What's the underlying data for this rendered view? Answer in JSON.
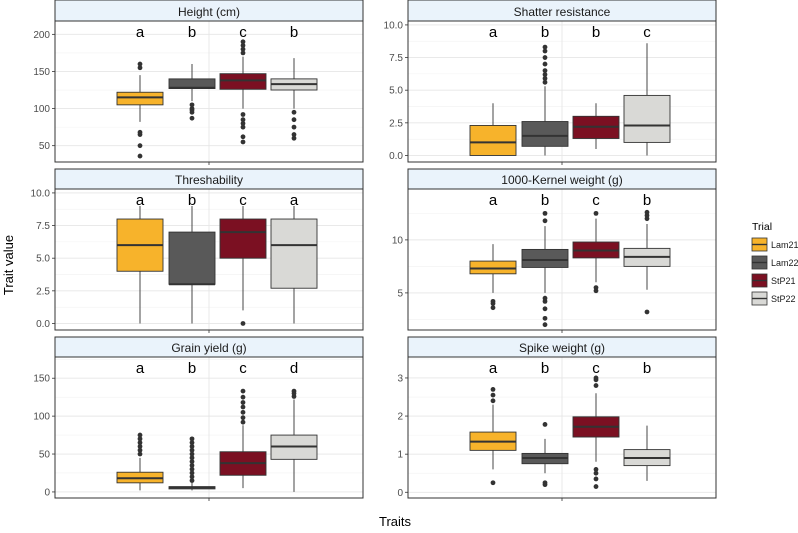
{
  "figure": {
    "ylabel": "Trait value",
    "xlabel": "Traits",
    "legend_title": "Trial",
    "legend": [
      {
        "name": "Lam21",
        "color": "#F7B32B"
      },
      {
        "name": "Lam22",
        "color": "#595959"
      },
      {
        "name": "StP21",
        "color": "#7B1022"
      },
      {
        "name": "StP22",
        "color": "#D9D9D6"
      }
    ]
  },
  "chart_data": [
    {
      "type": "boxplot",
      "title": "Height (cm)",
      "ylim": [
        28,
        218
      ],
      "yticks": [
        50,
        100,
        150,
        200
      ],
      "series": [
        {
          "name": "Lam21",
          "letter": "a",
          "min": 82,
          "q1": 105,
          "median": 115,
          "q3": 122,
          "max": 145,
          "outliers": [
            36,
            50,
            65,
            68,
            155,
            160
          ]
        },
        {
          "name": "Lam22",
          "letter": "b",
          "min": 110,
          "q1": 127,
          "median": 128,
          "q3": 140,
          "max": 160,
          "outliers": [
            87,
            95,
            98,
            100,
            105
          ]
        },
        {
          "name": "StP21",
          "letter": "c",
          "min": 100,
          "q1": 126,
          "median": 138,
          "q3": 147,
          "max": 170,
          "outliers": [
            55,
            62,
            75,
            80,
            85,
            92,
            175,
            180,
            185,
            190
          ]
        },
        {
          "name": "StP22",
          "letter": "b",
          "min": 100,
          "q1": 125,
          "median": 133,
          "q3": 140,
          "max": 168,
          "outliers": [
            60,
            65,
            75,
            85,
            95
          ]
        }
      ]
    },
    {
      "type": "boxplot",
      "title": "Shatter resistance",
      "ylim": [
        -0.5,
        10.3
      ],
      "yticks": [
        0.0,
        2.5,
        5.0,
        7.5,
        10.0
      ],
      "series": [
        {
          "name": "Lam21",
          "letter": "a",
          "min": 0,
          "q1": 0,
          "median": 1,
          "q3": 2.3,
          "max": 4,
          "outliers": []
        },
        {
          "name": "Lam22",
          "letter": "b",
          "min": 0,
          "q1": 0.7,
          "median": 1.5,
          "q3": 2.6,
          "max": 5.3,
          "outliers": [
            5.6,
            5.9,
            6.2,
            6.5,
            7,
            7.5,
            8,
            8.3
          ]
        },
        {
          "name": "StP21",
          "letter": "b",
          "min": 0.5,
          "q1": 1.3,
          "median": 2.2,
          "q3": 3,
          "max": 4,
          "outliers": []
        },
        {
          "name": "StP22",
          "letter": "c",
          "min": 0,
          "q1": 1,
          "median": 2.3,
          "q3": 4.6,
          "max": 8.6,
          "outliers": []
        }
      ]
    },
    {
      "type": "boxplot",
      "title": "Threshability",
      "ylim": [
        -0.5,
        10.3
      ],
      "yticks": [
        0.0,
        2.5,
        5.0,
        7.5,
        10.0
      ],
      "series": [
        {
          "name": "Lam21",
          "letter": "a",
          "min": 0,
          "q1": 4,
          "median": 6,
          "q3": 8,
          "max": 9,
          "outliers": []
        },
        {
          "name": "Lam22",
          "letter": "b",
          "min": 0,
          "q1": 3,
          "median": 3,
          "q3": 7,
          "max": 9,
          "outliers": []
        },
        {
          "name": "StP21",
          "letter": "c",
          "min": 1,
          "q1": 5,
          "median": 7,
          "q3": 8,
          "max": 9,
          "outliers": [
            0
          ]
        },
        {
          "name": "StP22",
          "letter": "a",
          "min": 0,
          "q1": 2.7,
          "median": 6,
          "q3": 8,
          "max": 9,
          "outliers": []
        }
      ]
    },
    {
      "type": "boxplot",
      "title": "1000-Kernel weight (g)",
      "ylim": [
        1.5,
        14.8
      ],
      "yticks": [
        5,
        10
      ],
      "series": [
        {
          "name": "Lam21",
          "letter": "a",
          "min": 5,
          "q1": 6.8,
          "median": 7.3,
          "q3": 8,
          "max": 9.6,
          "outliers": [
            3.6,
            4,
            4.2
          ]
        },
        {
          "name": "Lam22",
          "letter": "b",
          "min": 5,
          "q1": 7.4,
          "median": 8.1,
          "q3": 9.1,
          "max": 11.3,
          "outliers": [
            2,
            2.6,
            3.5,
            4.2,
            4.5,
            11.8,
            12.5
          ]
        },
        {
          "name": "StP21",
          "letter": "c",
          "min": 6,
          "q1": 8.3,
          "median": 9,
          "q3": 9.8,
          "max": 12,
          "outliers": [
            5.2,
            5.5,
            12.5
          ]
        },
        {
          "name": "StP22",
          "letter": "b",
          "min": 5.3,
          "q1": 7.5,
          "median": 8.4,
          "q3": 9.2,
          "max": 11.5,
          "outliers": [
            3.2,
            12,
            12.3,
            12.6
          ]
        }
      ]
    },
    {
      "type": "boxplot",
      "title": "Grain yield (g)",
      "ylim": [
        -8,
        178
      ],
      "yticks": [
        0,
        50,
        100,
        150
      ],
      "series": [
        {
          "name": "Lam21",
          "letter": "a",
          "min": 2,
          "q1": 12,
          "median": 18,
          "q3": 26,
          "max": 45,
          "outliers": [
            50,
            55,
            60,
            65,
            70,
            75
          ]
        },
        {
          "name": "Lam22",
          "letter": "b",
          "min": 2,
          "q1": 4,
          "median": 6,
          "q3": 7,
          "max": 12,
          "outliers": [
            15,
            20,
            25,
            30,
            35,
            40,
            45,
            50,
            55,
            60,
            65,
            70
          ]
        },
        {
          "name": "StP21",
          "letter": "c",
          "min": 5,
          "q1": 22,
          "median": 38,
          "q3": 53,
          "max": 88,
          "outliers": [
            92,
            98,
            105,
            112,
            118,
            125,
            133
          ]
        },
        {
          "name": "StP22",
          "letter": "d",
          "min": 0,
          "q1": 43,
          "median": 60,
          "q3": 75,
          "max": 122,
          "outliers": [
            126,
            130,
            133
          ]
        }
      ]
    },
    {
      "type": "boxplot",
      "title": "Spike weight (g)",
      "ylim": [
        -0.15,
        3.55
      ],
      "yticks": [
        0,
        1,
        2,
        3
      ],
      "series": [
        {
          "name": "Lam21",
          "letter": "a",
          "min": 0.6,
          "q1": 1.1,
          "median": 1.33,
          "q3": 1.58,
          "max": 2.3,
          "outliers": [
            0.25,
            2.4,
            2.55,
            2.7
          ]
        },
        {
          "name": "Lam22",
          "letter": "b",
          "min": 0.5,
          "q1": 0.75,
          "median": 0.9,
          "q3": 1.02,
          "max": 1.4,
          "outliers": [
            0.2,
            0.25,
            1.78
          ]
        },
        {
          "name": "StP21",
          "letter": "c",
          "min": 0.8,
          "q1": 1.45,
          "median": 1.72,
          "q3": 1.98,
          "max": 2.6,
          "outliers": [
            0.15,
            0.35,
            0.5,
            0.6,
            2.8,
            2.95,
            3
          ]
        },
        {
          "name": "StP22",
          "letter": "b",
          "min": 0.3,
          "q1": 0.7,
          "median": 0.9,
          "q3": 1.12,
          "max": 1.75,
          "outliers": []
        }
      ]
    }
  ]
}
